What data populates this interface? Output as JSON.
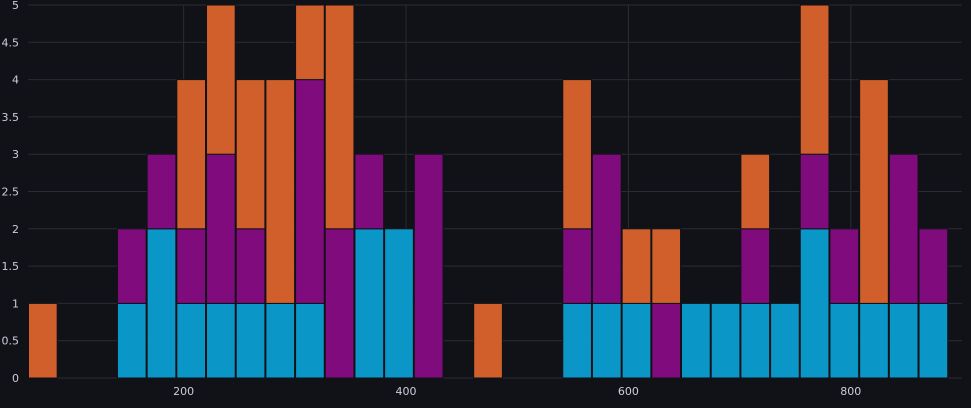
{
  "chart_data": {
    "type": "bar",
    "stacked": true,
    "grid": true,
    "legend": "none",
    "xlim": [
      60,
      900
    ],
    "ylim": [
      0,
      5
    ],
    "bin_width": 26.7,
    "x_ticks": [
      "200",
      "400",
      "600",
      "800"
    ],
    "x_tick_values": [
      200,
      400,
      600,
      800
    ],
    "y_ticks": [
      "0",
      "0.5",
      "1",
      "1.5",
      "2",
      "2.5",
      "3",
      "3.5",
      "4",
      "4.5",
      "5"
    ],
    "y_tick_values": [
      0,
      0.5,
      1,
      1.5,
      2,
      2.5,
      3,
      3.5,
      4,
      4.5,
      5
    ],
    "x": [
      60,
      140,
      166.7,
      193.4,
      220.1,
      246.8,
      273.5,
      300.2,
      326.9,
      353.6,
      380.3,
      407,
      460.4,
      540.5,
      567.2,
      593.9,
      620.6,
      647.3,
      674,
      700.7,
      727.4,
      754.1,
      780.8,
      807.5,
      834.2,
      860.9
    ],
    "series": [
      {
        "color": "#0a97c8",
        "values": [
          0,
          1,
          2,
          1,
          1,
          1,
          1,
          1,
          0,
          2,
          2,
          0,
          0,
          1,
          1,
          1,
          0,
          1,
          1,
          1,
          1,
          2,
          1,
          1,
          1,
          1
        ]
      },
      {
        "color": "#800b7c",
        "values": [
          0,
          1,
          1,
          1,
          2,
          1,
          0,
          3,
          2,
          1,
          0,
          3,
          0,
          1,
          2,
          0,
          1,
          0,
          0,
          1,
          0,
          1,
          1,
          0,
          2,
          1
        ]
      },
      {
        "color": "#d05f2b",
        "values": [
          1,
          0,
          0,
          2,
          2,
          2,
          3,
          1,
          3,
          0,
          0,
          0,
          1,
          2,
          0,
          1,
          1,
          0,
          0,
          1,
          0,
          2,
          0,
          3,
          0,
          0
        ]
      }
    ]
  }
}
